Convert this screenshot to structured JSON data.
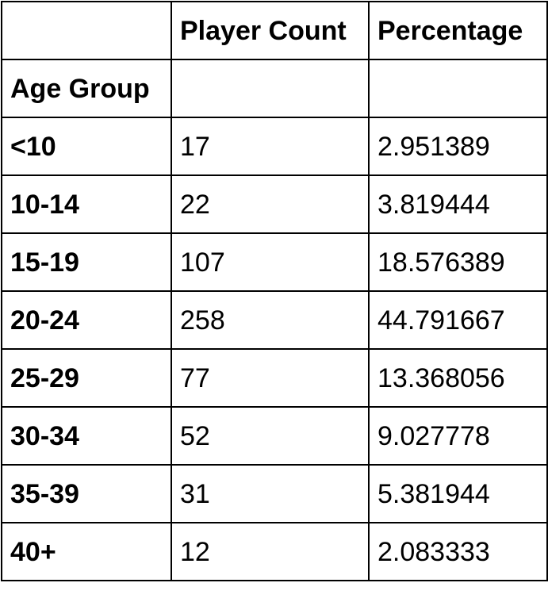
{
  "table": {
    "columns": [
      "",
      "Player Count",
      "Percentage"
    ],
    "index_name": "Age Group",
    "rows": [
      {
        "age_group": "<10",
        "player_count": "17",
        "percentage": "2.951389"
      },
      {
        "age_group": "10-14",
        "player_count": "22",
        "percentage": "3.819444"
      },
      {
        "age_group": "15-19",
        "player_count": "107",
        "percentage": "18.576389"
      },
      {
        "age_group": "20-24",
        "player_count": "258",
        "percentage": "44.791667"
      },
      {
        "age_group": "25-29",
        "player_count": "77",
        "percentage": "13.368056"
      },
      {
        "age_group": "30-34",
        "player_count": "52",
        "percentage": "9.027778"
      },
      {
        "age_group": "35-39",
        "player_count": "31",
        "percentage": "5.381944"
      },
      {
        "age_group": "40+",
        "player_count": "12",
        "percentage": "2.083333"
      }
    ]
  }
}
